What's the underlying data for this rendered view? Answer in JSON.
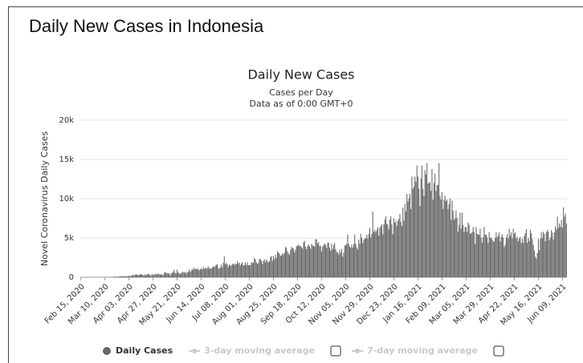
{
  "page_title": "Daily New Cases in Indonesia",
  "chart_data": {
    "type": "bar",
    "title": "Daily New Cases",
    "subtitle": "Cases per Day",
    "subtitle2": "Data as of 0:00 GMT+0",
    "y_label": "Novel Coronavirus Daily Cases",
    "ylim": [
      0,
      20000
    ],
    "yticks": [
      0,
      {
        "value": 5000,
        "label": "5k"
      },
      {
        "value": 10000,
        "label": "10k"
      },
      {
        "value": 15000,
        "label": "15k"
      },
      {
        "value": 20000,
        "label": "20k"
      }
    ],
    "grid": true,
    "categories": [
      "Feb 15, 2020",
      null,
      null,
      null,
      null,
      null,
      null,
      null,
      null,
      null,
      null,
      null,
      null,
      null,
      null,
      null,
      null,
      null,
      null,
      null,
      null,
      null,
      null,
      null,
      "Mar 10, 2020",
      null,
      null,
      null,
      null,
      null,
      null,
      null,
      null,
      null,
      null,
      null,
      null,
      null,
      null,
      null,
      null,
      null,
      null,
      null,
      null,
      null,
      null,
      null,
      "Apr 03, 2020",
      null,
      null,
      null,
      null,
      null,
      null,
      null,
      null,
      null,
      null,
      null,
      null,
      null,
      null,
      null,
      null,
      null,
      null,
      null,
      null,
      null,
      null,
      null,
      "Apr 27, 2020",
      null,
      null,
      null,
      null,
      null,
      null,
      null,
      null,
      null,
      null,
      null,
      null,
      null,
      null,
      null,
      null,
      null,
      null,
      null,
      null,
      null,
      null,
      null,
      "May 21, 2020",
      null,
      null,
      null,
      null,
      null,
      null,
      null,
      null,
      null,
      null,
      null,
      null,
      null,
      null,
      null,
      null,
      null,
      null,
      null,
      null,
      null,
      null,
      null,
      "Jun 14, 2020",
      null,
      null,
      null,
      null,
      null,
      null,
      null,
      null,
      null,
      null,
      null,
      null,
      null,
      null,
      null,
      null,
      null,
      null,
      null,
      null,
      null,
      null,
      null,
      "Jul 08, 2020",
      null,
      null,
      null,
      null,
      null,
      null,
      null,
      null,
      null,
      null,
      null,
      null,
      null,
      null,
      null,
      null,
      null,
      null,
      null,
      null,
      null,
      null,
      null,
      "Aug 01, 2020",
      null,
      null,
      null,
      null,
      null,
      null,
      null,
      null,
      null,
      null,
      null,
      null,
      null,
      null,
      null,
      null,
      null,
      null,
      null,
      null,
      null,
      null,
      null,
      "Aug 25, 2020",
      null,
      null,
      null,
      null,
      null,
      null,
      null,
      null,
      null,
      null,
      null,
      null,
      null,
      null,
      null,
      null,
      null,
      null,
      null,
      null,
      null,
      null,
      null,
      "Sep 18, 2020",
      null,
      null,
      null,
      null,
      null,
      null,
      null,
      null,
      null,
      null,
      null,
      null,
      null,
      null,
      null,
      null,
      null,
      null,
      null,
      null,
      null,
      null,
      null,
      "Oct 12, 2020",
      null,
      null,
      null,
      null,
      null,
      null,
      null,
      null,
      null,
      null,
      null,
      null,
      null,
      null,
      null,
      null,
      null,
      null,
      null,
      null,
      null,
      null,
      null,
      "Nov 05, 2020",
      null,
      null,
      null,
      null,
      null,
      null,
      null,
      null,
      null,
      null,
      null,
      null,
      null,
      null,
      null,
      null,
      null,
      null,
      null,
      null,
      null,
      null,
      null,
      "Nov 29, 2020",
      null,
      null,
      null,
      null,
      null,
      null,
      null,
      null,
      null,
      null,
      null,
      null,
      null,
      null,
      null,
      null,
      null,
      null,
      null,
      null,
      null,
      null,
      null,
      "Dec 23, 2020",
      null,
      null,
      null,
      null,
      null,
      null,
      null,
      null,
      null,
      null,
      null,
      null,
      null,
      null,
      null,
      null,
      null,
      null,
      null,
      null,
      null,
      null,
      null,
      "Jan 16, 2021",
      null,
      null,
      null,
      null,
      null,
      null,
      null,
      null,
      null,
      null,
      null,
      null,
      null,
      null,
      null,
      null,
      null,
      null,
      null,
      null,
      null,
      null,
      null,
      "Feb 09, 2021",
      null,
      null,
      null,
      null,
      null,
      null,
      null,
      null,
      null,
      null,
      null,
      null,
      null,
      null,
      null,
      null,
      null,
      null,
      null,
      null,
      null,
      null,
      null,
      "Mar 05, 2021",
      null,
      null,
      null,
      null,
      null,
      null,
      null,
      null,
      null,
      null,
      null,
      null,
      null,
      null,
      null,
      null,
      null,
      null,
      null,
      null,
      null,
      null,
      null,
      "Mar 29, 2021",
      null,
      null,
      null,
      null,
      null,
      null,
      null,
      null,
      null,
      null,
      null,
      null,
      null,
      null,
      null,
      null,
      null,
      null,
      null,
      null,
      null,
      null,
      null,
      "Apr 22, 2021",
      null,
      null,
      null,
      null,
      null,
      null,
      null,
      null,
      null,
      null,
      null,
      null,
      null,
      null,
      null,
      null,
      null,
      null,
      null,
      null,
      null,
      null,
      null,
      "May 16, 2021",
      null,
      null,
      null,
      null,
      null,
      null,
      null,
      null,
      null,
      null,
      null,
      null,
      null,
      null,
      null,
      null,
      null,
      null,
      null,
      null,
      null,
      null,
      null,
      "Jun 09, 2021",
      null,
      null,
      null,
      null
    ],
    "series": [
      {
        "name": "Daily Cases",
        "color": "#666666",
        "values": [
          0,
          0,
          0,
          0,
          0,
          0,
          0,
          0,
          0,
          0,
          0,
          0,
          0,
          0,
          0,
          2,
          0,
          0,
          2,
          0,
          0,
          2,
          13,
          0,
          8,
          15,
          7,
          35,
          27,
          21,
          17,
          38,
          55,
          82,
          60,
          81,
          64,
          65,
          107,
          104,
          103,
          153,
          109,
          130,
          129,
          114,
          149,
          113,
          196,
          106,
          223,
          218,
          337,
          219,
          330,
          399,
          316,
          282,
          297,
          380,
          407,
          325,
          327,
          185,
          375,
          283,
          357,
          436,
          396,
          275,
          214,
          415,
          260,
          347,
          433,
          336,
          395,
          484,
          367,
          386,
          338,
          387,
          233,
          484,
          689,
          568,
          533,
          489,
          496,
          220,
          529,
          486,
          693,
          973,
          570,
          486,
          973,
          634,
          526,
          415,
          479,
          686,
          687,
          557,
          700,
          467,
          609,
          684,
          993,
          672,
          847,
          1043,
          949,
          1241,
          1014,
          1106,
          979,
          1111,
          857,
          1017,
          1106,
          1031,
          1331,
          1041,
          1226,
          1051,
          1177,
          1385,
          1113,
          1178,
          1082,
          1240,
          1385,
          1293,
          1447,
          1624,
          1607,
          1209,
          1082,
          1268,
          1611,
          1268,
          1853,
          2657,
          1671,
          1819,
          1681,
          1282,
          1591,
          1525,
          1462,
          1693,
          1752,
          1565,
          1752,
          1639,
          2040,
          1761,
          1868,
          1492,
          1748,
          1906,
          1522,
          1525,
          1904,
          1560,
          1893,
          1519,
          1560,
          1519,
          1922,
          1815,
          1882,
          2473,
          2277,
          1893,
          1693,
          1821,
          2307,
          2345,
          2081,
          1673,
          2098,
          2266,
          1902,
          2255,
          2090,
          1882,
          2037,
          2549,
          2719,
          2081,
          2719,
          2306,
          2858,
          2495,
          3308,
          3128,
          3003,
          2743,
          2775,
          3046,
          2880,
          3141,
          3861,
          3737,
          3307,
          3046,
          2842,
          3444,
          3861,
          3737,
          3636,
          3141,
          3507,
          3963,
          3989,
          4168,
          3989,
          3963,
          3823,
          3636,
          4465,
          4634,
          3874,
          3563,
          4007,
          4174,
          3944,
          3622,
          4284,
          4049,
          4007,
          3891,
          4823,
          4850,
          4294,
          4497,
          3966,
          4010,
          3267,
          3906,
          4127,
          4301,
          4105,
          3732,
          4369,
          4432,
          3803,
          3373,
          4267,
          3602,
          4070,
          4369,
          3565,
          3222,
          3143,
          2897,
          3520,
          3143,
          3565,
          2618,
          3143,
          4065,
          4065,
          4262,
          5444,
          4262,
          3880,
          3779,
          4173,
          3779,
          4192,
          5444,
          4265,
          3807,
          3535,
          4798,
          4265,
          5534,
          4998,
          4360,
          4792,
          4917,
          4998,
          5418,
          4917,
          5534,
          6267,
          5092,
          5533,
          8369,
          5803,
          6027,
          5754,
          6058,
          6388,
          5292,
          6310,
          6503,
          6726,
          5489,
          6725,
          7354,
          7751,
          6848,
          6689,
          6120,
          7354,
          7751,
          6725,
          5489,
          7514,
          6947,
          7203,
          6528,
          7179,
          7445,
          8074,
          7072,
          6528,
          8854,
          7203,
          9321,
          8369,
          10617,
          9640,
          10046,
          10617,
          8692,
          12818,
          11278,
          11557,
          12818,
          12157,
          14224,
          12818,
          11287,
          9086,
          12568,
          14224,
          11287,
          10365,
          13632,
          13094,
          14518,
          11948,
          12001,
          12156,
          10994,
          13802,
          9883,
          12001,
          13212,
          10994,
          11749,
          11749,
          14518,
          10365,
          9883,
          10844,
          8700,
          9869,
          10379,
          9687,
          9869,
          8700,
          9321,
          10030,
          7300,
          9775,
          8493,
          7300,
          7503,
          8493,
          7534,
          5767,
          6680,
          8232,
          6208,
          8232,
          6680,
          5767,
          6397,
          6397,
          5767,
          6969,
          6680,
          5561,
          5561,
          5767,
          6412,
          5767,
          4209,
          6412,
          5561,
          5430,
          5414,
          6208,
          5064,
          4397,
          5064,
          6412,
          5414,
          5430,
          5064,
          4397,
          5753,
          5008,
          5096,
          4826,
          4549,
          4549,
          5008,
          5733,
          5096,
          5325,
          5733,
          4549,
          5160,
          5490,
          5041,
          3853,
          4157,
          5041,
          5490,
          4953,
          6177,
          5325,
          5720,
          4952,
          6177,
          5490,
          5720,
          4952,
          5149,
          4587,
          4952,
          5149,
          4369,
          4895,
          4369,
          5285,
          5613,
          6130,
          4369,
          5033,
          4608,
          6054,
          5613,
          4871,
          4123,
          3448,
          2633,
          2385,
          3080,
          4871,
          3448,
          4901,
          5746,
          5012,
          5797,
          5514,
          4606,
          5746,
          6031,
          5797,
          4723,
          5064,
          6004,
          5700,
          4824,
          5706,
          6486,
          6093,
          7725,
          6294,
          6850,
          6447,
          7299,
          6294,
          8892,
          7725,
          8083,
          6850
        ]
      }
    ],
    "legend_extra": [
      {
        "name": "3-day moving average",
        "color": "#cccccc"
      },
      {
        "name": "7-day moving average",
        "color": "#cccccc"
      }
    ]
  }
}
